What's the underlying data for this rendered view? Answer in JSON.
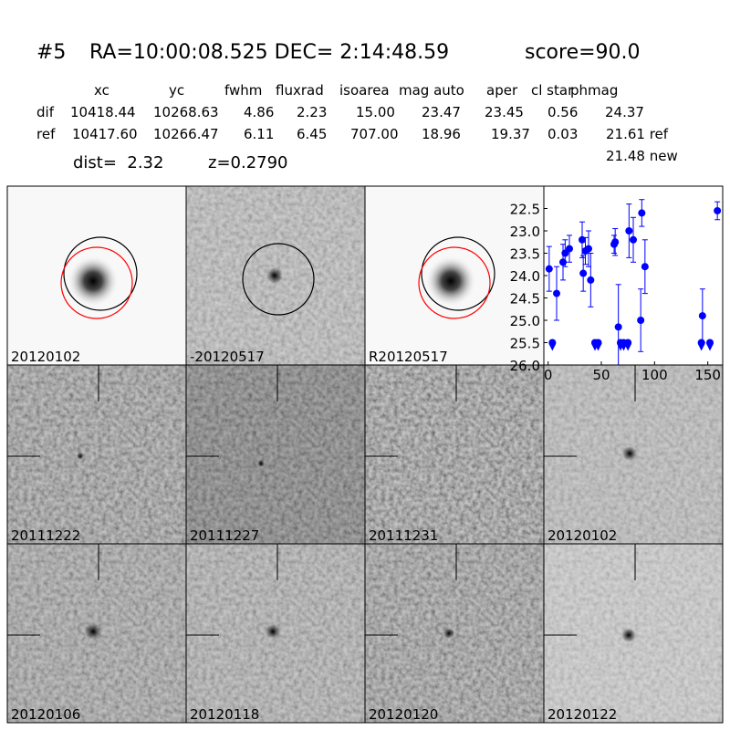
{
  "header": {
    "id": "#5",
    "coords": "RA=10:00:08.525 DEC= 2:14:48.59",
    "score": "score=90.0"
  },
  "table": {
    "columns": [
      "xc",
      "yc",
      "fwhm",
      "fluxrad",
      "isoarea",
      "mag auto",
      "aper",
      "cl star",
      "phmag"
    ],
    "rows": [
      [
        "dif",
        "10418.44",
        "10268.63",
        "4.86",
        "2.23",
        "15.00",
        "23.47",
        "23.45",
        "0.56",
        "24.37"
      ],
      [
        "ref",
        "10417.60",
        "10266.47",
        "6.11",
        "6.45",
        "707.00",
        "18.96",
        "19.37",
        "0.03",
        "21.61 ref"
      ]
    ],
    "extra": "21.48 new"
  },
  "dist": "dist=  2.32",
  "z": "z=0.2790",
  "panels": [
    {
      "label": "20120102"
    },
    {
      "label": "-20120517"
    },
    {
      "label": "R20120517"
    },
    {
      "label": "20111222"
    },
    {
      "label": "20111227"
    },
    {
      "label": "20111231"
    },
    {
      "label": "20120102",
      "color": "#ff0000"
    },
    {
      "label": "20120106"
    },
    {
      "label": "20120118"
    },
    {
      "label": "20120120"
    },
    {
      "label": "20120122"
    }
  ],
  "chart_data": {
    "type": "errorbar",
    "color": "#0000ff",
    "x": [
      1,
      8,
      14,
      16,
      20,
      32,
      33,
      35,
      38,
      40,
      62,
      63,
      66,
      76,
      80,
      87,
      88,
      91,
      145,
      159
    ],
    "values": [
      23.85,
      24.4,
      23.7,
      23.5,
      23.4,
      23.2,
      23.95,
      23.45,
      23.4,
      24.1,
      23.3,
      23.25,
      25.15,
      23.0,
      23.2,
      25.0,
      22.6,
      23.8,
      24.9,
      22.55
    ],
    "errors": [
      0.5,
      0.6,
      0.4,
      0.3,
      0.3,
      0.4,
      0.4,
      0.3,
      0.4,
      0.6,
      0.2,
      0.3,
      0.95,
      0.6,
      0.5,
      0.7,
      0.3,
      0.6,
      0.6,
      0.2
    ],
    "limits": {
      "x": [
        4,
        44,
        47,
        68,
        71,
        75,
        144,
        152
      ],
      "values": [
        25.5,
        25.5,
        25.5,
        25.5,
        25.5,
        25.5,
        25.5,
        25.5
      ]
    },
    "xlim": [
      -4,
      164
    ],
    "ylim": [
      26,
      22
    ],
    "xticks": [
      0,
      50,
      100,
      150
    ],
    "yticks": [
      22.5,
      {
        "value": 23.0,
        "label": "23.0"
      },
      23.5,
      {
        "value": 24.0,
        "label": "24.0"
      },
      24.5,
      {
        "value": 25.0,
        "label": "25.0"
      },
      25.5,
      {
        "value": 26.0,
        "label": "26.0"
      }
    ]
  }
}
